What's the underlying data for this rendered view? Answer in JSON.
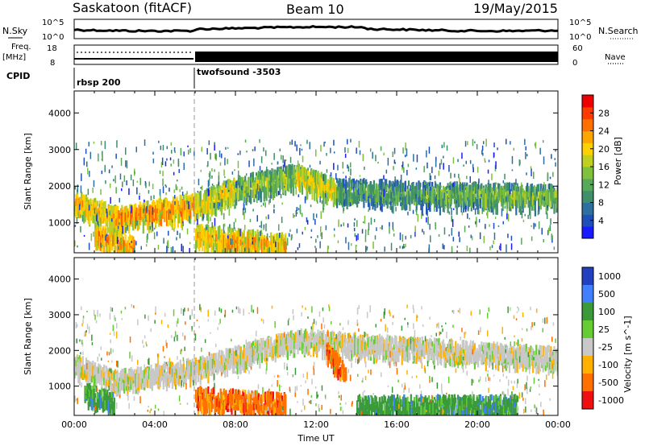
{
  "header": {
    "station": "Saskatoon (fitACF)",
    "beam": "Beam 10",
    "date": "19/May/2015"
  },
  "top_panels": {
    "nsky_label": "N.Sky",
    "nsky_ticks": [
      "10^5",
      "10^0"
    ],
    "nsearch_label": "N.Search",
    "nsearch_ticks": [
      "10^5",
      "10^0"
    ],
    "freq_label_1": "Freq.",
    "freq_label_2": "[MHz]",
    "freq_ticks": [
      "18",
      "8"
    ],
    "nave_label": "Nave",
    "nave_ticks": [
      "60",
      "0"
    ],
    "cpid_label": "CPID",
    "cpid_modes": [
      {
        "name": "rbsp 200",
        "start_hour": 0,
        "end_hour": 6
      },
      {
        "name": "twofsound -3503",
        "start_hour": 6,
        "end_hour": 24
      }
    ]
  },
  "chart_data": [
    {
      "type": "heatmap",
      "title": "",
      "ylabel": "Slant Range [km]",
      "xlabel": "",
      "x_range_hours": [
        0,
        24
      ],
      "ylim": [
        180,
        4600
      ],
      "y_ticks": [
        "1000",
        "2000",
        "3000",
        "4000"
      ],
      "colorbar": {
        "label": "Power [dB]",
        "range": [
          0,
          32
        ],
        "ticks": [
          "4",
          "8",
          "12",
          "16",
          "20",
          "24",
          "28"
        ],
        "colors": [
          "#1a1aff",
          "#1f4fb8",
          "#2f6fa0",
          "#3f8f6a",
          "#58a85a",
          "#7fc03c",
          "#c0d020",
          "#ffd000",
          "#ffa500",
          "#ff7000",
          "#ff3a00",
          "#ee0000"
        ]
      },
      "echo_bands": [
        {
          "start_hour": 0.0,
          "end_hour": 2.0,
          "from_range_km": 1600,
          "to_range_km": 1150,
          "power_db": 24
        },
        {
          "start_hour": 2.0,
          "end_hour": 6.0,
          "from_range_km": 1150,
          "to_range_km": 1500,
          "power_db": 26
        },
        {
          "start_hour": 6.0,
          "end_hour": 8.0,
          "from_range_km": 1500,
          "to_range_km": 1950,
          "power_db": 22
        },
        {
          "start_hour": 8.0,
          "end_hour": 11.0,
          "from_range_km": 1950,
          "to_range_km": 2300,
          "power_db": 18
        },
        {
          "start_hour": 11.0,
          "end_hour": 13.0,
          "from_range_km": 2300,
          "to_range_km": 1900,
          "power_db": 22
        },
        {
          "start_hour": 13.0,
          "end_hour": 18.0,
          "from_range_km": 1900,
          "to_range_km": 1800,
          "power_db": 14
        },
        {
          "start_hour": 18.0,
          "end_hour": 24.0,
          "from_range_km": 1800,
          "to_range_km": 1750,
          "power_db": 16
        },
        {
          "start_hour": 1.0,
          "end_hour": 3.0,
          "from_range_km": 700,
          "to_range_km": 300,
          "power_db": 26
        },
        {
          "start_hour": 6.0,
          "end_hour": 10.5,
          "from_range_km": 650,
          "to_range_km": 400,
          "power_db": 24
        }
      ]
    },
    {
      "type": "heatmap",
      "title": "",
      "ylabel": "Slant Range [km]",
      "xlabel": "Time UT",
      "x_ticks": [
        "00:00",
        "04:00",
        "08:00",
        "12:00",
        "16:00",
        "20:00",
        "00:00"
      ],
      "x_range_hours": [
        0,
        24
      ],
      "ylim": [
        180,
        4600
      ],
      "y_ticks": [
        "1000",
        "2000",
        "3000",
        "4000"
      ],
      "colorbar": {
        "label": "Velocity [m s^-1]",
        "levels": [
          "1000",
          "500",
          "100",
          "25",
          "-25",
          "-100",
          "-500",
          "-1000"
        ],
        "colors": [
          "#2040c0",
          "#4080ff",
          "#3a9a3a",
          "#66cc33",
          "#c8c8c8",
          "#ffb000",
          "#ff7000",
          "#ee1010"
        ]
      },
      "echo_bands": [
        {
          "start_hour": 0.0,
          "end_hour": 2.0,
          "from_range_km": 1600,
          "to_range_km": 1150,
          "velocity": "-25"
        },
        {
          "start_hour": 2.0,
          "end_hour": 6.0,
          "from_range_km": 1150,
          "to_range_km": 1500,
          "velocity": "-25"
        },
        {
          "start_hour": 6.0,
          "end_hour": 11.0,
          "from_range_km": 1500,
          "to_range_km": 2300,
          "velocity": "-25"
        },
        {
          "start_hour": 11.0,
          "end_hour": 24.0,
          "from_range_km": 2300,
          "to_range_km": 1800,
          "velocity": "-25"
        },
        {
          "start_hour": 0.5,
          "end_hour": 2.0,
          "from_range_km": 800,
          "to_range_km": 500,
          "velocity": "100"
        },
        {
          "start_hour": 6.0,
          "end_hour": 10.5,
          "from_range_km": 700,
          "to_range_km": 500,
          "velocity": "-500"
        },
        {
          "start_hour": 12.5,
          "end_hour": 13.5,
          "from_range_km": 2000,
          "to_range_km": 1300,
          "velocity": "-500"
        },
        {
          "start_hour": 14.0,
          "end_hour": 22.0,
          "from_range_km": 450,
          "to_range_km": 450,
          "velocity": "100"
        }
      ]
    }
  ]
}
